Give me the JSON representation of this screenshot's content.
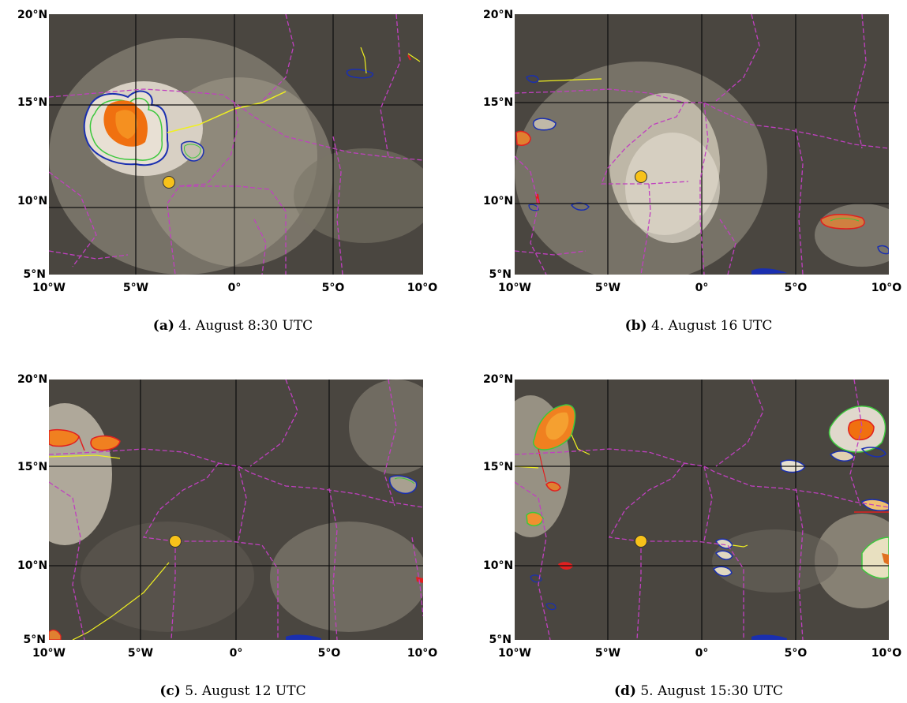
{
  "panels": [
    {
      "id": "a",
      "letter": "(a)",
      "caption": "4. August 8:30 UTC"
    },
    {
      "id": "b",
      "letter": "(b)",
      "caption": "4. August 16 UTC"
    },
    {
      "id": "c",
      "letter": "(c)",
      "caption": "5. August 12 UTC"
    },
    {
      "id": "d",
      "letter": "(d)",
      "caption": "5. August 15:30 UTC"
    }
  ],
  "lat_labels": [
    "20°N",
    "15°N",
    "10°N",
    "5°N"
  ],
  "lon_labels": [
    "10°W",
    "5°W",
    "0°",
    "5°O",
    "10°O"
  ],
  "colors": {
    "background": "#4a4640",
    "cloud": "#d8d0c4",
    "grid": "#111111",
    "border": "#c040c0",
    "marker": "#f7c21a",
    "contour_blue": "#1a2fb0",
    "contour_green": "#3cc83c",
    "contour_red": "#e02020",
    "track": "#f0f020",
    "core": "#f07010"
  }
}
